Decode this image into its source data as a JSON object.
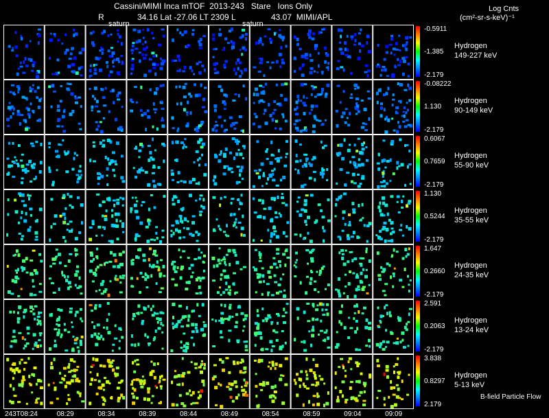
{
  "header": {
    "line1": "Cassini/MIMI Inca mTOF  2013-243   Stare   Ions Only",
    "line2_r": "R",
    "line2_mid": "34.16 Lat -27.06 LT 2309 L",
    "line2_right": "43.07  MIMI/APL",
    "saturn1": "saturn",
    "saturn2": "saturn",
    "units1": "Log Cnts",
    "units2": "(cm²-sr-s-keV)⁻¹"
  },
  "colors": {
    "background": "#000000",
    "grid": "#ffffff"
  },
  "chart_data": {
    "type": "heatmap",
    "time_labels": [
      "243T08:24",
      "08:29",
      "08:34",
      "08:39",
      "08:44",
      "08:49",
      "08:54",
      "08:59",
      "09:04",
      "09:09"
    ],
    "rows": [
      {
        "species": "Hydrogen",
        "energy": "149-227 keV",
        "cb_top": "-0.5911",
        "cb_mid": "-1.385",
        "cb_bot": "-2.179",
        "level": 0.1
      },
      {
        "species": "Hydrogen",
        "energy": "90-149 keV",
        "cb_top": "-0.08222",
        "cb_mid": "1.130",
        "cb_bot": "-2.179",
        "level": 0.18
      },
      {
        "species": "Hydrogen",
        "energy": "55-90 keV",
        "cb_top": "0.6067",
        "cb_mid": "0.7659",
        "cb_bot": "-2.179",
        "level": 0.32
      },
      {
        "species": "Hydrogen",
        "energy": "35-55 keV",
        "cb_top": "1.130",
        "cb_mid": "0.5244",
        "cb_bot": "-2.179",
        "level": 0.38
      },
      {
        "species": "Hydrogen",
        "energy": "24-35 keV",
        "cb_top": "1.647",
        "cb_mid": "0.2660",
        "cb_bot": "-2.179",
        "level": 0.5
      },
      {
        "species": "Hydrogen",
        "energy": "13-24 keV",
        "cb_top": "2.591",
        "cb_mid": "0.2063",
        "cb_bot": "-2.179",
        "level": 0.48
      },
      {
        "species": "Hydrogen",
        "energy": "5-13 keV",
        "cb_top": "3.838",
        "cb_mid": "0.8297",
        "cb_bot": "2.179",
        "level": 0.68
      }
    ],
    "footer_note": "B-field Particle Flow"
  }
}
